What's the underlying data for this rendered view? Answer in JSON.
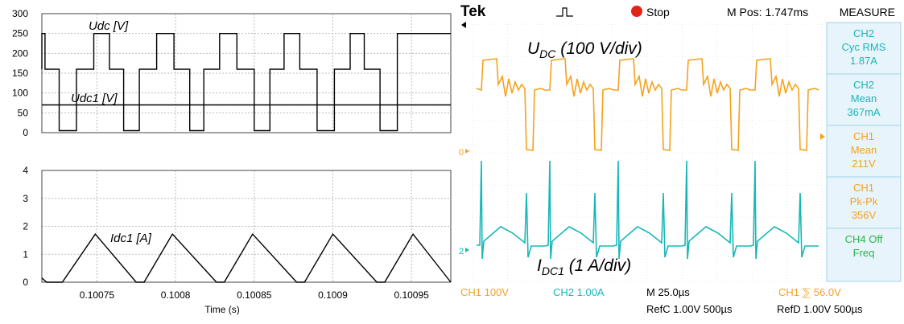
{
  "chart_data": [
    {
      "type": "line",
      "plot": "upper",
      "ylim": [
        0,
        300
      ],
      "yticks": [
        "300",
        "250",
        "200",
        "150",
        "100",
        "50",
        "0"
      ],
      "grid": true,
      "series": [
        {
          "name": "Udc [V]",
          "color": "#000000",
          "x": [
            0.100715,
            0.100715,
            0.100717,
            0.100717,
            0.100726,
            0.100726,
            0.100737,
            0.100737,
            0.100748,
            0.100748,
            0.100758,
            0.100758,
            0.100767,
            0.100767,
            0.100777,
            0.100777,
            0.100788,
            0.100788,
            0.100799,
            0.100799,
            0.100809,
            0.100809,
            0.100818,
            0.100818,
            0.100828,
            0.100828,
            0.100839,
            0.100839,
            0.10085,
            0.10085,
            0.10086,
            0.10086,
            0.100869,
            0.100869,
            0.100879,
            0.100879,
            0.10089,
            0.10089,
            0.100901,
            0.100901,
            0.100911,
            0.100911,
            0.10092,
            0.10092,
            0.10093,
            0.10093,
            0.100941,
            0.100941,
            0.100975
          ],
          "y": [
            160,
            250,
            250,
            160,
            160,
            5,
            5,
            160,
            160,
            250,
            250,
            160,
            160,
            5,
            5,
            160,
            160,
            250,
            250,
            160,
            160,
            5,
            5,
            160,
            160,
            250,
            250,
            160,
            160,
            5,
            5,
            160,
            160,
            250,
            250,
            160,
            160,
            5,
            5,
            160,
            160,
            250,
            250,
            160,
            160,
            5,
            5,
            250,
            250
          ]
        },
        {
          "name": "Udc1 [V]",
          "color": "#000000",
          "x": [
            0.100715,
            0.100975
          ],
          "y": [
            70,
            70
          ]
        }
      ]
    },
    {
      "type": "line",
      "plot": "lower",
      "ylim": [
        0,
        4
      ],
      "xlim": [
        0.100715,
        0.100975
      ],
      "yticks": [
        "4",
        "3",
        "2",
        "1",
        "0"
      ],
      "xticks": [
        "0.10075",
        "0.1008",
        "0.10085",
        "0.1009",
        "0.10095"
      ],
      "xtick_values": [
        0.10075,
        0.1008,
        0.10085,
        0.1009,
        0.10095
      ],
      "xlabel": "Time (s)",
      "grid": true,
      "series": [
        {
          "name": "Idc1 [A]",
          "color": "#000000",
          "x": [
            0.100715,
            0.100718,
            0.100728,
            0.100749,
            0.100775,
            0.10078,
            0.100798,
            0.100826,
            0.100831,
            0.100849,
            0.100877,
            0.100882,
            0.1009,
            0.100928,
            0.100933,
            0.100951,
            0.100975
          ],
          "y": [
            0.15,
            0,
            0,
            1.72,
            0,
            0,
            1.72,
            0,
            0,
            1.72,
            0,
            0,
            1.72,
            0,
            0,
            1.72,
            0
          ]
        }
      ]
    },
    {
      "type": "line",
      "plot": "oscilloscope",
      "header": {
        "brand": "Tek",
        "status": "Stop",
        "mpos": "M Pos: 1.747ms",
        "measure_title": "MEASURE"
      },
      "trace_labels": {
        "udc_main": "U",
        "udc_sub": "DC",
        "udc_rest": " (100 V/div)",
        "idc_main": "I",
        "idc_sub": "DC1",
        "idc_rest": " (1 A/div)"
      },
      "markers": {
        "ch1_ground": "0",
        "ch2_ground": "2"
      },
      "measurements": [
        {
          "channel": "CH2",
          "name": "Cyc RMS",
          "value": "1.87A",
          "color": "#18b7b7"
        },
        {
          "channel": "CH2",
          "name": "Mean",
          "value": "367mA",
          "color": "#18b7b7"
        },
        {
          "channel": "CH1",
          "name": "Mean",
          "value": "211V",
          "color": "#f5a21c"
        },
        {
          "channel": "CH1",
          "name": "Pk-Pk",
          "value": "356V",
          "color": "#f5a21c"
        },
        {
          "channel": "CH4 Off",
          "name": "Freq",
          "value": "",
          "color": "#2bb34a"
        }
      ],
      "footer": {
        "ch1": "CH1  100V",
        "ch2": "CH2  1.00A",
        "timebase": "M 25.0µs",
        "trigger": "CH1  ⅀ 56.0V",
        "refc": "RefC 1.00V 500µs",
        "refd": "RefD 1.00V 500µs"
      },
      "colors": {
        "ch1": "#f5a21c",
        "ch2": "#18b7b7",
        "stop": "#e2231a",
        "menu_bg": "#e7f4fb",
        "menu_border": "#9fd3ea"
      }
    }
  ]
}
